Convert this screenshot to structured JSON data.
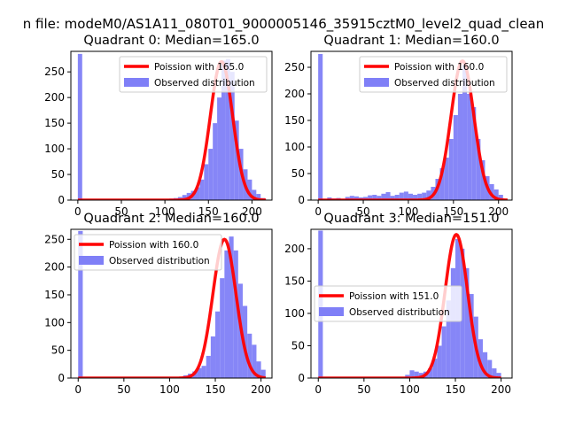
{
  "figure": {
    "suptitle": "n file: modeM0/AS1A11_080T01_9000005146_35915cztM0_level2_quad_clean",
    "colors": {
      "hist": "#7f7ff7",
      "fit": "#ff0000"
    }
  },
  "chart_data": [
    {
      "type": "bar",
      "title": "Quadrant 0: Median=165.0",
      "legend": {
        "placement": "upper-right",
        "entries": [
          "Poission with 165.0",
          "Observed distribution"
        ]
      },
      "xlim": [
        -8,
        223
      ],
      "ylim": [
        0,
        290
      ],
      "xticks": [
        0,
        50,
        100,
        150,
        200
      ],
      "yticks": [
        0,
        50,
        100,
        150,
        200,
        250
      ],
      "bin_width": 5,
      "hist": [
        [
          0,
          285
        ],
        [
          105,
          3
        ],
        [
          110,
          4
        ],
        [
          115,
          6
        ],
        [
          120,
          10
        ],
        [
          125,
          14
        ],
        [
          130,
          18
        ],
        [
          135,
          25
        ],
        [
          140,
          40
        ],
        [
          145,
          70
        ],
        [
          150,
          100
        ],
        [
          155,
          150
        ],
        [
          160,
          200
        ],
        [
          165,
          272
        ],
        [
          170,
          275
        ],
        [
          175,
          250
        ],
        [
          180,
          155
        ],
        [
          185,
          100
        ],
        [
          190,
          60
        ],
        [
          195,
          40
        ],
        [
          200,
          20
        ],
        [
          205,
          12
        ],
        [
          210,
          4
        ]
      ],
      "fit": {
        "median": 165,
        "peak": 270,
        "xmin": 0,
        "xmax": 216
      }
    },
    {
      "type": "bar",
      "title": "Quadrant 1: Median=160.0",
      "legend": {
        "placement": "upper-right",
        "entries": [
          "Poission with 160.0",
          "Observed distribution"
        ]
      },
      "xlim": [
        -8,
        215
      ],
      "ylim": [
        0,
        280
      ],
      "xticks": [
        0,
        50,
        100,
        150,
        200
      ],
      "yticks": [
        0,
        50,
        100,
        150,
        200,
        250
      ],
      "bin_width": 5,
      "hist": [
        [
          0,
          275
        ],
        [
          10,
          5
        ],
        [
          15,
          3
        ],
        [
          20,
          4
        ],
        [
          30,
          6
        ],
        [
          35,
          8
        ],
        [
          40,
          7
        ],
        [
          45,
          5
        ],
        [
          50,
          6
        ],
        [
          55,
          9
        ],
        [
          60,
          10
        ],
        [
          65,
          8
        ],
        [
          70,
          12
        ],
        [
          75,
          15
        ],
        [
          80,
          8
        ],
        [
          85,
          10
        ],
        [
          90,
          14
        ],
        [
          95,
          16
        ],
        [
          100,
          12
        ],
        [
          105,
          10
        ],
        [
          110,
          12
        ],
        [
          115,
          14
        ],
        [
          120,
          18
        ],
        [
          125,
          25
        ],
        [
          130,
          40
        ],
        [
          135,
          60
        ],
        [
          140,
          80
        ],
        [
          145,
          115
        ],
        [
          150,
          160
        ],
        [
          155,
          200
        ],
        [
          160,
          255
        ],
        [
          165,
          200
        ],
        [
          170,
          175
        ],
        [
          175,
          115
        ],
        [
          180,
          75
        ],
        [
          185,
          45
        ],
        [
          190,
          30
        ],
        [
          195,
          20
        ],
        [
          200,
          10
        ]
      ],
      "fit": {
        "median": 160,
        "peak": 262,
        "xmin": 0,
        "xmax": 210
      }
    },
    {
      "type": "bar",
      "title": "Quadrant 2: Median=160.0",
      "legend": {
        "placement": "upper-left",
        "entries": [
          "Poission with 160.0",
          "Observed distribution"
        ]
      },
      "xlim": [
        -8,
        212
      ],
      "ylim": [
        0,
        268
      ],
      "xticks": [
        0,
        50,
        100,
        150,
        200
      ],
      "yticks": [
        0,
        50,
        100,
        150,
        200,
        250
      ],
      "bin_width": 5,
      "hist": [
        [
          0,
          265
        ],
        [
          115,
          5
        ],
        [
          120,
          8
        ],
        [
          125,
          12
        ],
        [
          130,
          18
        ],
        [
          135,
          22
        ],
        [
          140,
          40
        ],
        [
          145,
          75
        ],
        [
          150,
          120
        ],
        [
          155,
          180
        ],
        [
          160,
          230
        ],
        [
          165,
          255
        ],
        [
          170,
          230
        ],
        [
          175,
          170
        ],
        [
          180,
          130
        ],
        [
          185,
          80
        ],
        [
          190,
          60
        ],
        [
          195,
          30
        ],
        [
          200,
          15
        ]
      ],
      "fit": {
        "median": 160,
        "peak": 250,
        "xmin": 0,
        "xmax": 205
      }
    },
    {
      "type": "bar",
      "title": "Quadrant 3: Median=151.0",
      "legend": {
        "placement": "center-left",
        "entries": [
          "Poission with 151.0",
          "Observed distribution"
        ]
      },
      "xlim": [
        -8,
        212
      ],
      "ylim": [
        0,
        230
      ],
      "xticks": [
        0,
        50,
        100,
        150,
        200
      ],
      "yticks": [
        0,
        50,
        100,
        150,
        200
      ],
      "bin_width": 5,
      "hist": [
        [
          0,
          228
        ],
        [
          95,
          5
        ],
        [
          100,
          12
        ],
        [
          105,
          10
        ],
        [
          110,
          8
        ],
        [
          115,
          10
        ],
        [
          120,
          15
        ],
        [
          125,
          30
        ],
        [
          130,
          50
        ],
        [
          135,
          80
        ],
        [
          140,
          120
        ],
        [
          145,
          170
        ],
        [
          150,
          215
        ],
        [
          155,
          200
        ],
        [
          160,
          170
        ],
        [
          165,
          130
        ],
        [
          170,
          95
        ],
        [
          175,
          60
        ],
        [
          180,
          40
        ],
        [
          185,
          28
        ],
        [
          190,
          15
        ],
        [
          195,
          8
        ]
      ],
      "fit": {
        "median": 151,
        "peak": 222,
        "xmin": 0,
        "xmax": 200
      }
    }
  ]
}
